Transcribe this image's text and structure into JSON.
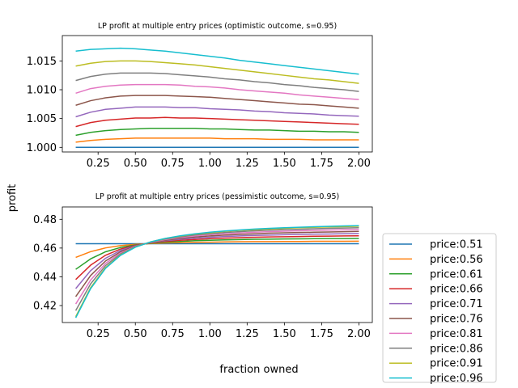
{
  "figure": {
    "ylabel": "profit",
    "xlabel": "fraction owned"
  },
  "chart_data": [
    {
      "type": "line",
      "title": "LP profit at multiple entry prices (optimistic outcome, s=0.95)",
      "xlim": [
        0.01,
        2.09
      ],
      "ylim": [
        0.9992,
        1.0194
      ],
      "xticks": [
        0.25,
        0.5,
        0.75,
        1.0,
        1.25,
        1.5,
        1.75,
        2.0
      ],
      "xtick_labels": [
        "0.25",
        "0.50",
        "0.75",
        "1.00",
        "1.25",
        "1.50",
        "1.75",
        "2.00"
      ],
      "yticks": [
        1.0,
        1.005,
        1.01,
        1.015
      ],
      "ytick_labels": [
        "1.000",
        "1.005",
        "1.010",
        "1.015"
      ],
      "x": [
        0.1,
        0.2,
        0.3,
        0.4,
        0.5,
        0.6,
        0.7,
        0.8,
        0.9,
        1.0,
        1.1,
        1.2,
        1.3,
        1.4,
        1.5,
        1.6,
        1.7,
        1.8,
        1.9,
        2.0
      ],
      "series": [
        {
          "name": "price:0.51",
          "color": "#1f77b4",
          "values": [
            1.0,
            1.0,
            1.0,
            1.0,
            1.0,
            1.0,
            1.0,
            1.0,
            1.0,
            1.0,
            1.0,
            1.0,
            1.0,
            1.0,
            1.0,
            1.0,
            1.0,
            1.0,
            1.0,
            1.0
          ]
        },
        {
          "name": "price:0.56",
          "color": "#ff7f0e",
          "values": [
            1.0009,
            1.0012,
            1.0014,
            1.0015,
            1.0016,
            1.0016,
            1.0016,
            1.0016,
            1.0016,
            1.0016,
            1.0015,
            1.0015,
            1.0015,
            1.0014,
            1.0014,
            1.0014,
            1.0013,
            1.0013,
            1.0013,
            1.0013
          ]
        },
        {
          "name": "price:0.61",
          "color": "#2ca02c",
          "values": [
            1.0021,
            1.0026,
            1.0029,
            1.0031,
            1.0032,
            1.0033,
            1.0033,
            1.0033,
            1.0033,
            1.0032,
            1.0032,
            1.0031,
            1.003,
            1.003,
            1.0029,
            1.0028,
            1.0028,
            1.0027,
            1.0027,
            1.0026
          ]
        },
        {
          "name": "price:0.66",
          "color": "#d62728",
          "values": [
            1.0036,
            1.0043,
            1.0047,
            1.0049,
            1.0051,
            1.0051,
            1.0052,
            1.0051,
            1.0051,
            1.005,
            1.0049,
            1.0048,
            1.0047,
            1.0046,
            1.0045,
            1.0044,
            1.0043,
            1.0042,
            1.0041,
            1.004
          ]
        },
        {
          "name": "price:0.71",
          "color": "#9467bd",
          "values": [
            1.0053,
            1.0061,
            1.0066,
            1.0068,
            1.007,
            1.007,
            1.007,
            1.0069,
            1.0069,
            1.0067,
            1.0066,
            1.0065,
            1.0063,
            1.0062,
            1.006,
            1.0059,
            1.0058,
            1.0056,
            1.0055,
            1.0054
          ]
        },
        {
          "name": "price:0.76",
          "color": "#8c564b",
          "values": [
            1.0073,
            1.0081,
            1.0086,
            1.0089,
            1.009,
            1.009,
            1.009,
            1.0089,
            1.0088,
            1.0087,
            1.0085,
            1.0083,
            1.0081,
            1.0079,
            1.0077,
            1.0075,
            1.0074,
            1.0072,
            1.007,
            1.0068
          ]
        },
        {
          "name": "price:0.81",
          "color": "#e377c2",
          "values": [
            1.0094,
            1.0102,
            1.0106,
            1.0108,
            1.0109,
            1.0109,
            1.0109,
            1.0108,
            1.0106,
            1.0105,
            1.0103,
            1.01,
            1.0098,
            1.0096,
            1.0094,
            1.0091,
            1.0089,
            1.0087,
            1.0085,
            1.0083
          ]
        },
        {
          "name": "price:0.86",
          "color": "#7f7f7f",
          "values": [
            1.0116,
            1.0123,
            1.0127,
            1.0129,
            1.0129,
            1.0129,
            1.0128,
            1.0126,
            1.0124,
            1.0122,
            1.0119,
            1.0117,
            1.0114,
            1.0112,
            1.0109,
            1.0107,
            1.0104,
            1.0102,
            1.01,
            1.0097
          ]
        },
        {
          "name": "price:0.91",
          "color": "#bcbd22",
          "values": [
            1.0141,
            1.0146,
            1.0149,
            1.015,
            1.015,
            1.0149,
            1.0147,
            1.0145,
            1.0143,
            1.014,
            1.0137,
            1.0134,
            1.0131,
            1.0128,
            1.0125,
            1.0122,
            1.0119,
            1.0117,
            1.0114,
            1.0111
          ]
        },
        {
          "name": "price:0.96",
          "color": "#17becf",
          "values": [
            1.0167,
            1.017,
            1.0171,
            1.0172,
            1.0171,
            1.0169,
            1.0167,
            1.0164,
            1.0161,
            1.0158,
            1.0155,
            1.0151,
            1.0148,
            1.0145,
            1.0142,
            1.0139,
            1.0136,
            1.0133,
            1.013,
            1.0127
          ]
        }
      ]
    },
    {
      "type": "line",
      "title": "LP profit at multiple entry prices (pessimistic outcome, s=0.95)",
      "xlim": [
        0.01,
        2.09
      ],
      "ylim": [
        0.4082,
        0.4886
      ],
      "xticks": [
        0.25,
        0.5,
        0.75,
        1.0,
        1.25,
        1.5,
        1.75,
        2.0
      ],
      "xtick_labels": [
        "0.25",
        "0.50",
        "0.75",
        "1.00",
        "1.25",
        "1.50",
        "1.75",
        "2.00"
      ],
      "yticks": [
        0.42,
        0.44,
        0.46,
        0.48
      ],
      "ytick_labels": [
        "0.42",
        "0.44",
        "0.46",
        "0.48"
      ],
      "x": [
        0.1,
        0.2,
        0.3,
        0.4,
        0.5,
        0.6,
        0.7,
        0.8,
        0.9,
        1.0,
        1.1,
        1.2,
        1.3,
        1.4,
        1.5,
        1.6,
        1.7,
        1.8,
        1.9,
        2.0
      ],
      "series": [
        {
          "name": "price:0.51",
          "color": "#1f77b4",
          "values": [
            0.463,
            0.463,
            0.463,
            0.463,
            0.463,
            0.463,
            0.463,
            0.463,
            0.463,
            0.463,
            0.463,
            0.463,
            0.463,
            0.463,
            0.463,
            0.463,
            0.463,
            0.463,
            0.463,
            0.463
          ]
        },
        {
          "name": "price:0.56",
          "color": "#ff7f0e",
          "values": [
            0.4535,
            0.4575,
            0.4601,
            0.4617,
            0.4626,
            0.4631,
            0.4635,
            0.4638,
            0.464,
            0.4641,
            0.4643,
            0.4644,
            0.4645,
            0.4645,
            0.4646,
            0.4646,
            0.4647,
            0.4647,
            0.4647,
            0.4648
          ]
        },
        {
          "name": "price:0.61",
          "color": "#2ca02c",
          "values": [
            0.4452,
            0.4525,
            0.4574,
            0.4604,
            0.4622,
            0.4633,
            0.4641,
            0.4646,
            0.4651,
            0.4654,
            0.4657,
            0.4659,
            0.4661,
            0.4662,
            0.4663,
            0.4664,
            0.4665,
            0.4666,
            0.4666,
            0.4667
          ]
        },
        {
          "name": "price:0.66",
          "color": "#d62728",
          "values": [
            0.4381,
            0.4481,
            0.455,
            0.4593,
            0.4619,
            0.4635,
            0.4646,
            0.4654,
            0.466,
            0.4665,
            0.4669,
            0.4672,
            0.4675,
            0.4677,
            0.4679,
            0.468,
            0.4682,
            0.4683,
            0.4684,
            0.4685
          ]
        },
        {
          "name": "price:0.71",
          "color": "#9467bd",
          "values": [
            0.4318,
            0.4443,
            0.4529,
            0.4583,
            0.4616,
            0.4637,
            0.4651,
            0.4661,
            0.4669,
            0.4675,
            0.468,
            0.4684,
            0.4688,
            0.469,
            0.4693,
            0.4695,
            0.4697,
            0.4698,
            0.47,
            0.4701
          ]
        },
        {
          "name": "price:0.76",
          "color": "#8c564b",
          "values": [
            0.4262,
            0.4409,
            0.451,
            0.4574,
            0.4614,
            0.4638,
            0.4655,
            0.4667,
            0.4677,
            0.4684,
            0.469,
            0.4695,
            0.4699,
            0.4703,
            0.4706,
            0.4708,
            0.471,
            0.4712,
            0.4714,
            0.4716
          ]
        },
        {
          "name": "price:0.81",
          "color": "#e377c2",
          "values": [
            0.4211,
            0.4378,
            0.4493,
            0.4566,
            0.4611,
            0.4639,
            0.4659,
            0.4673,
            0.4684,
            0.4693,
            0.47,
            0.4705,
            0.471,
            0.4714,
            0.4717,
            0.472,
            0.4723,
            0.4725,
            0.4727,
            0.4729
          ]
        },
        {
          "name": "price:0.86",
          "color": "#7f7f7f",
          "values": [
            0.4165,
            0.4351,
            0.4478,
            0.4558,
            0.4609,
            0.4641,
            0.4663,
            0.4678,
            0.4691,
            0.47,
            0.4708,
            0.4714,
            0.472,
            0.4724,
            0.4728,
            0.4731,
            0.4734,
            0.4737,
            0.4739,
            0.4741
          ]
        },
        {
          "name": "price:0.91",
          "color": "#bcbd22",
          "values": [
            0.4123,
            0.4325,
            0.4464,
            0.4552,
            0.4607,
            0.4642,
            0.4666,
            0.4683,
            0.4697,
            0.4707,
            0.4716,
            0.4723,
            0.4728,
            0.4733,
            0.4737,
            0.4741,
            0.4744,
            0.4747,
            0.4749,
            0.4752
          ]
        },
        {
          "name": "price:0.96",
          "color": "#17becf",
          "values": [
            0.4115,
            0.4318,
            0.4459,
            0.4549,
            0.4606,
            0.4642,
            0.4667,
            0.4685,
            0.4699,
            0.471,
            0.4719,
            0.4726,
            0.4732,
            0.4737,
            0.4741,
            0.4745,
            0.4748,
            0.4751,
            0.4754,
            0.4756
          ]
        }
      ]
    }
  ]
}
